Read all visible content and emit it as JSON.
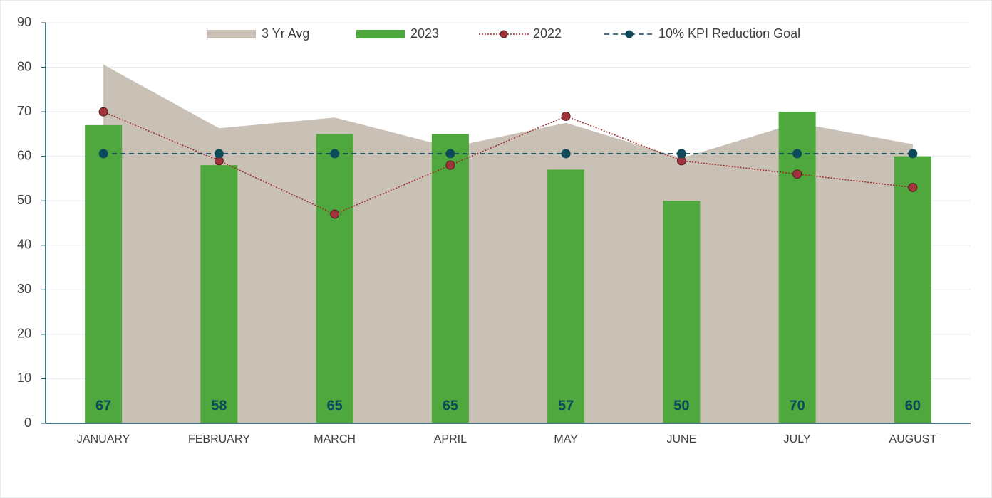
{
  "chart_data": {
    "type": "combo",
    "categories": [
      "JANUARY",
      "FEBRUARY",
      "MARCH",
      "APRIL",
      "MAY",
      "JUNE",
      "JULY",
      "AUGUST"
    ],
    "series": [
      {
        "name": "3 Yr Avg",
        "type": "area",
        "color": "#c9c0b6",
        "values": [
          80.6,
          66.3,
          68.7,
          62,
          67.5,
          59.6,
          67.5,
          62.7
        ]
      },
      {
        "name": "2023",
        "type": "bar",
        "color": "#4ea83d",
        "values": [
          67,
          58,
          65,
          65,
          57,
          50,
          70,
          60
        ]
      },
      {
        "name": "2022",
        "type": "line",
        "color": "#9e2a2b",
        "values": [
          70,
          59,
          47,
          58,
          69,
          59,
          56,
          53
        ]
      },
      {
        "name": "10% KPI Reduction Goal",
        "type": "dashed",
        "color": "#0d4a5a",
        "values": [
          60.6,
          60.6,
          60.6,
          60.6,
          60.6,
          60.6,
          60.6,
          60.6
        ]
      }
    ],
    "ylim": [
      0,
      90
    ],
    "yticks": [
      0,
      10,
      20,
      30,
      40,
      50,
      60,
      70,
      80,
      90
    ],
    "grid": true,
    "legend": "top"
  }
}
